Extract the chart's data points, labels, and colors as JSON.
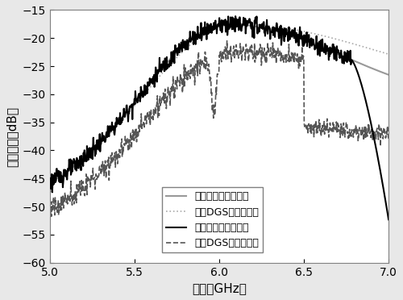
{
  "xlim": [
    5.0,
    7.0
  ],
  "ylim": [
    -60,
    -15
  ],
  "yticks": [
    -60,
    -55,
    -50,
    -45,
    -40,
    -35,
    -30,
    -25,
    -20,
    -15
  ],
  "xticks": [
    5.0,
    5.5,
    6.0,
    6.5,
    7.0
  ],
  "xlabel": "频率（GHz）",
  "ylabel": "插入损耗（dB）",
  "legend": [
    "传统天线（仿真値）",
    "加入DGS（仿真値）",
    "传统天线（测量値）",
    "加入DGS（测量値）"
  ],
  "colors": {
    "sim_traditional": "#999999",
    "sim_dgs": "#aaaaaa",
    "meas_traditional": "#000000",
    "meas_dgs": "#555555"
  },
  "background_color": "#f0f0f0",
  "plot_bg": "#ffffff"
}
